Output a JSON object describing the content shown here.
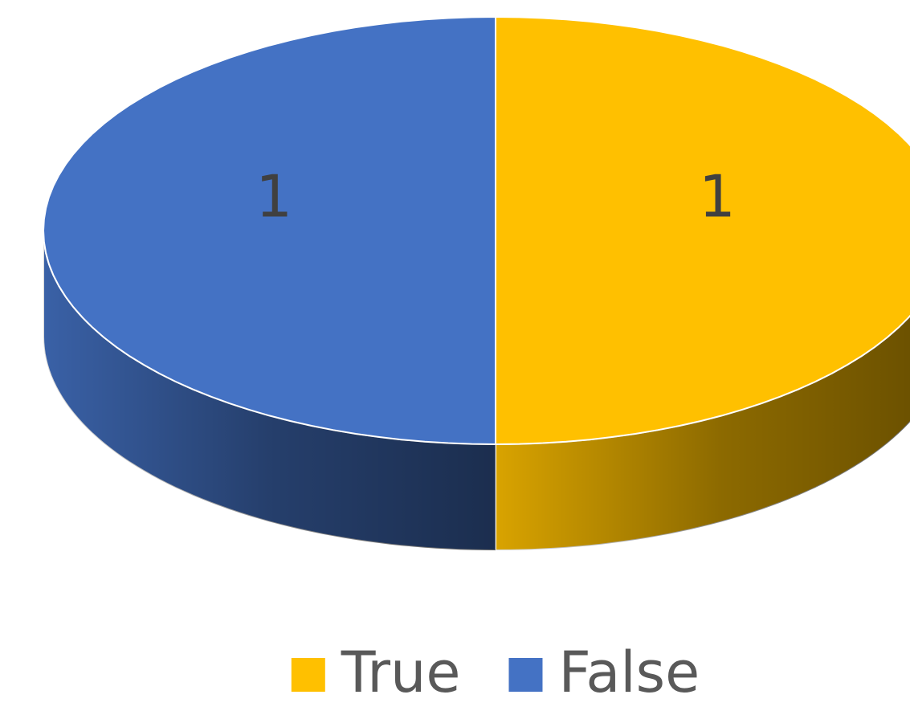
{
  "chart_data": {
    "type": "pie3d",
    "categories": [
      "True",
      "False"
    ],
    "values": [
      1,
      1
    ],
    "colors": [
      "#FFC000",
      "#4472C4"
    ],
    "legend": "bottom"
  }
}
